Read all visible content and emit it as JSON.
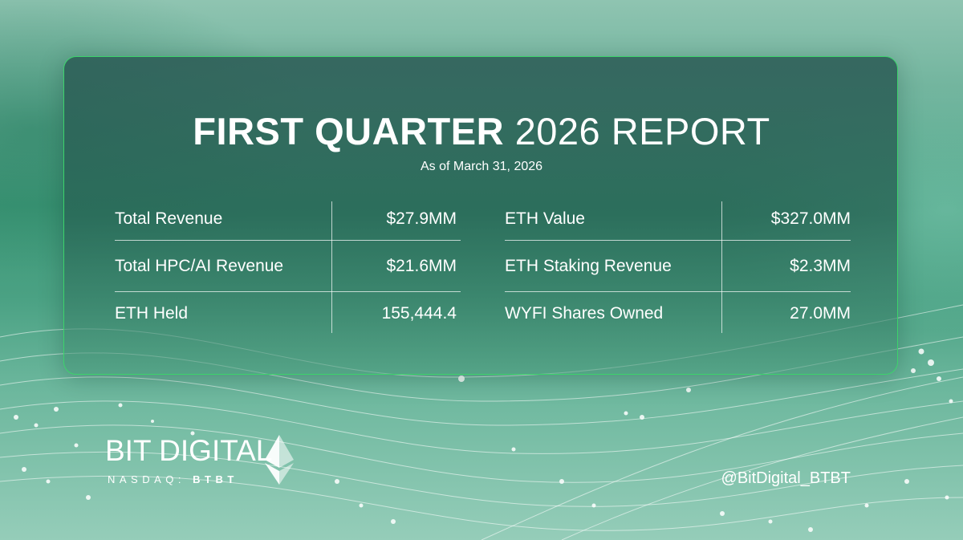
{
  "report": {
    "title_bold": "FIRST QUARTER",
    "title_light": "2026 REPORT",
    "subtitle": "As of March 31, 2026"
  },
  "stats": {
    "left": [
      {
        "label": "Total Revenue",
        "value": "$27.9MM"
      },
      {
        "label": "Total HPC/AI Revenue",
        "value": "$21.6MM"
      },
      {
        "label": "ETH Held",
        "value": "155,444.4"
      }
    ],
    "right": [
      {
        "label": "ETH Value",
        "value": "$327.0MM"
      },
      {
        "label": "ETH Staking Revenue",
        "value": "$2.3MM"
      },
      {
        "label": "WYFI Shares Owned",
        "value": "27.0MM"
      }
    ]
  },
  "brand": {
    "name": "BIT DIGITAL",
    "exchange": "NASDAQ:",
    "ticker": "BTBT",
    "logo_icon": "ethereum-diamond-icon",
    "social_handle": "@BitDigital_BTBT"
  },
  "colors": {
    "accent_border": "#3cd36b",
    "text": "#ffffff",
    "card_tint": "#2c5c56"
  }
}
